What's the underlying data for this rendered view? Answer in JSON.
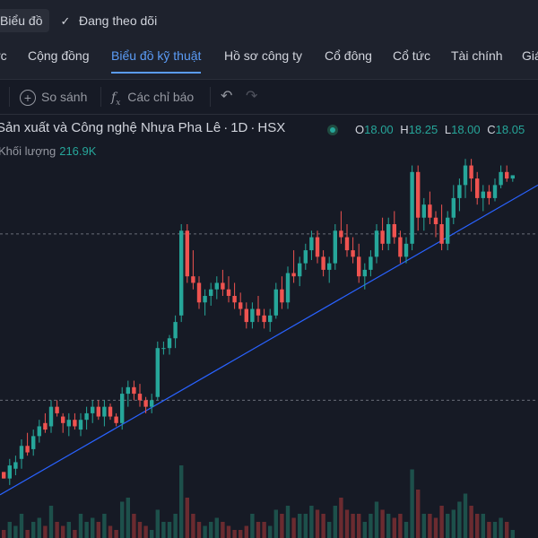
{
  "topbar": {
    "chart_button": "Biểu đồ",
    "follow_label": "Đang theo dõi",
    "follow_icon": "check-icon"
  },
  "tabs": [
    {
      "label": "rc"
    },
    {
      "label": "Cộng đồng"
    },
    {
      "label": "Biểu đồ kỹ thuật",
      "active": true
    },
    {
      "label": "Hồ sơ công ty"
    },
    {
      "label": "Cổ đông"
    },
    {
      "label": "Cổ tức"
    },
    {
      "label": "Tài chính"
    },
    {
      "label": "Giá"
    }
  ],
  "toolbar": {
    "compare_label": "So sánh",
    "indicators_label": "Các chỉ báo",
    "undo_icon": "undo-icon",
    "redo_icon": "redo-icon"
  },
  "legend": {
    "symbol_name": "Sản xuất và Công nghệ Nhựa Pha Lê",
    "interval": "1D",
    "exchange": "HSX",
    "o_label": "O",
    "o": "18.00",
    "h_label": "H",
    "h": "18.25",
    "l_label": "L",
    "l": "18.00",
    "c_label": "C",
    "c": "18.05",
    "volume_label": "Khối lượng",
    "volume": "216.9K"
  },
  "colors": {
    "up": "#26a69a",
    "down": "#ef5350",
    "trendline": "#2962ff",
    "accent": "#5b9cf6"
  },
  "chart_data": {
    "type": "candlestick",
    "candles": [
      [
        0.62,
        0.62,
        0.6,
        0.6
      ],
      [
        0.6,
        0.66,
        0.58,
        0.64
      ],
      [
        0.63,
        0.67,
        0.61,
        0.65
      ],
      [
        0.66,
        0.72,
        0.63,
        0.7
      ],
      [
        0.7,
        0.74,
        0.67,
        0.68
      ],
      [
        0.69,
        0.75,
        0.67,
        0.73
      ],
      [
        0.73,
        0.78,
        0.71,
        0.76
      ],
      [
        0.77,
        0.8,
        0.74,
        0.75
      ],
      [
        0.76,
        0.84,
        0.74,
        0.82
      ],
      [
        0.82,
        0.84,
        0.79,
        0.8
      ],
      [
        0.79,
        0.8,
        0.74,
        0.77
      ],
      [
        0.76,
        0.8,
        0.73,
        0.78
      ],
      [
        0.78,
        0.8,
        0.75,
        0.76
      ],
      [
        0.75,
        0.8,
        0.73,
        0.78
      ],
      [
        0.78,
        0.82,
        0.75,
        0.8
      ],
      [
        0.8,
        0.84,
        0.77,
        0.82
      ],
      [
        0.82,
        0.84,
        0.78,
        0.79
      ],
      [
        0.79,
        0.84,
        0.76,
        0.82
      ],
      [
        0.82,
        0.83,
        0.78,
        0.79
      ],
      [
        0.79,
        0.8,
        0.76,
        0.77
      ],
      [
        0.77,
        0.88,
        0.75,
        0.86
      ],
      [
        0.86,
        0.9,
        0.82,
        0.88
      ],
      [
        0.88,
        0.9,
        0.84,
        0.86
      ],
      [
        0.86,
        0.89,
        0.82,
        0.84
      ],
      [
        0.84,
        0.85,
        0.8,
        0.82
      ],
      [
        0.82,
        0.86,
        0.8,
        0.84
      ],
      [
        0.85,
        1.02,
        0.84,
        1.0
      ],
      [
        1.0,
        1.02,
        0.98,
        1.0
      ],
      [
        1.0,
        1.04,
        0.98,
        1.03
      ],
      [
        1.03,
        1.1,
        1.0,
        1.08
      ],
      [
        1.1,
        1.38,
        1.08,
        1.36
      ],
      [
        1.36,
        1.38,
        1.2,
        1.22
      ],
      [
        1.22,
        1.3,
        1.18,
        1.2
      ],
      [
        1.2,
        1.22,
        1.12,
        1.14
      ],
      [
        1.14,
        1.18,
        1.1,
        1.16
      ],
      [
        1.16,
        1.2,
        1.13,
        1.18
      ],
      [
        1.18,
        1.22,
        1.15,
        1.2
      ],
      [
        1.2,
        1.24,
        1.16,
        1.18
      ],
      [
        1.18,
        1.22,
        1.14,
        1.16
      ],
      [
        1.16,
        1.2,
        1.12,
        1.14
      ],
      [
        1.14,
        1.17,
        1.1,
        1.12
      ],
      [
        1.12,
        1.14,
        1.06,
        1.08
      ],
      [
        1.08,
        1.14,
        1.06,
        1.12
      ],
      [
        1.12,
        1.16,
        1.08,
        1.1
      ],
      [
        1.1,
        1.12,
        1.06,
        1.08
      ],
      [
        1.08,
        1.12,
        1.05,
        1.1
      ],
      [
        1.1,
        1.2,
        1.09,
        1.18
      ],
      [
        1.18,
        1.22,
        1.12,
        1.14
      ],
      [
        1.14,
        1.25,
        1.12,
        1.23
      ],
      [
        1.23,
        1.3,
        1.2,
        1.22
      ],
      [
        1.22,
        1.28,
        1.19,
        1.26
      ],
      [
        1.26,
        1.32,
        1.24,
        1.3
      ],
      [
        1.3,
        1.36,
        1.27,
        1.34
      ],
      [
        1.34,
        1.36,
        1.26,
        1.28
      ],
      [
        1.28,
        1.3,
        1.22,
        1.24
      ],
      [
        1.24,
        1.28,
        1.2,
        1.26
      ],
      [
        1.26,
        1.38,
        1.24,
        1.36
      ],
      [
        1.36,
        1.42,
        1.32,
        1.34
      ],
      [
        1.34,
        1.38,
        1.28,
        1.3
      ],
      [
        1.3,
        1.34,
        1.26,
        1.28
      ],
      [
        1.28,
        1.32,
        1.2,
        1.22
      ],
      [
        1.22,
        1.26,
        1.18,
        1.24
      ],
      [
        1.24,
        1.3,
        1.22,
        1.28
      ],
      [
        1.28,
        1.38,
        1.26,
        1.36
      ],
      [
        1.36,
        1.4,
        1.3,
        1.32
      ],
      [
        1.32,
        1.4,
        1.3,
        1.38
      ],
      [
        1.38,
        1.42,
        1.32,
        1.34
      ],
      [
        1.34,
        1.36,
        1.26,
        1.28
      ],
      [
        1.28,
        1.34,
        1.26,
        1.32
      ],
      [
        1.32,
        1.56,
        1.3,
        1.54
      ],
      [
        1.54,
        1.56,
        1.36,
        1.4
      ],
      [
        1.4,
        1.46,
        1.36,
        1.44
      ],
      [
        1.44,
        1.48,
        1.38,
        1.4
      ],
      [
        1.4,
        1.42,
        1.34,
        1.38
      ],
      [
        1.38,
        1.44,
        1.3,
        1.32
      ],
      [
        1.32,
        1.42,
        1.3,
        1.4
      ],
      [
        1.4,
        1.5,
        1.38,
        1.46
      ],
      [
        1.46,
        1.52,
        1.42,
        1.5
      ],
      [
        1.5,
        1.58,
        1.46,
        1.56
      ],
      [
        1.56,
        1.58,
        1.48,
        1.52
      ],
      [
        1.52,
        1.54,
        1.44,
        1.46
      ],
      [
        1.46,
        1.5,
        1.42,
        1.48
      ],
      [
        1.48,
        1.5,
        1.44,
        1.46
      ],
      [
        1.46,
        1.52,
        1.45,
        1.5
      ],
      [
        1.5,
        1.56,
        1.49,
        1.54
      ],
      [
        1.54,
        1.56,
        1.51,
        1.52
      ],
      [
        1.52,
        1.53,
        1.51,
        1.53
      ]
    ],
    "volumes": [
      0.1,
      0.2,
      0.15,
      0.3,
      0.1,
      0.2,
      0.25,
      0.15,
      0.4,
      0.2,
      0.15,
      0.2,
      0.1,
      0.3,
      0.2,
      0.25,
      0.2,
      0.3,
      0.15,
      0.1,
      0.45,
      0.5,
      0.3,
      0.2,
      0.15,
      0.1,
      0.35,
      0.2,
      0.2,
      0.3,
      0.9,
      0.5,
      0.3,
      0.2,
      0.15,
      0.2,
      0.25,
      0.2,
      0.15,
      0.1,
      0.1,
      0.15,
      0.3,
      0.2,
      0.2,
      0.15,
      0.35,
      0.3,
      0.4,
      0.25,
      0.3,
      0.3,
      0.4,
      0.35,
      0.3,
      0.2,
      0.4,
      0.5,
      0.35,
      0.3,
      0.3,
      0.2,
      0.3,
      0.45,
      0.35,
      0.3,
      0.25,
      0.3,
      0.2,
      0.85,
      0.6,
      0.3,
      0.3,
      0.25,
      0.4,
      0.3,
      0.35,
      0.45,
      0.55,
      0.4,
      0.3,
      0.3,
      0.2,
      0.2,
      0.25,
      0.2,
      0.1
    ],
    "price_lines": [
      1.35,
      0.84
    ]
  }
}
